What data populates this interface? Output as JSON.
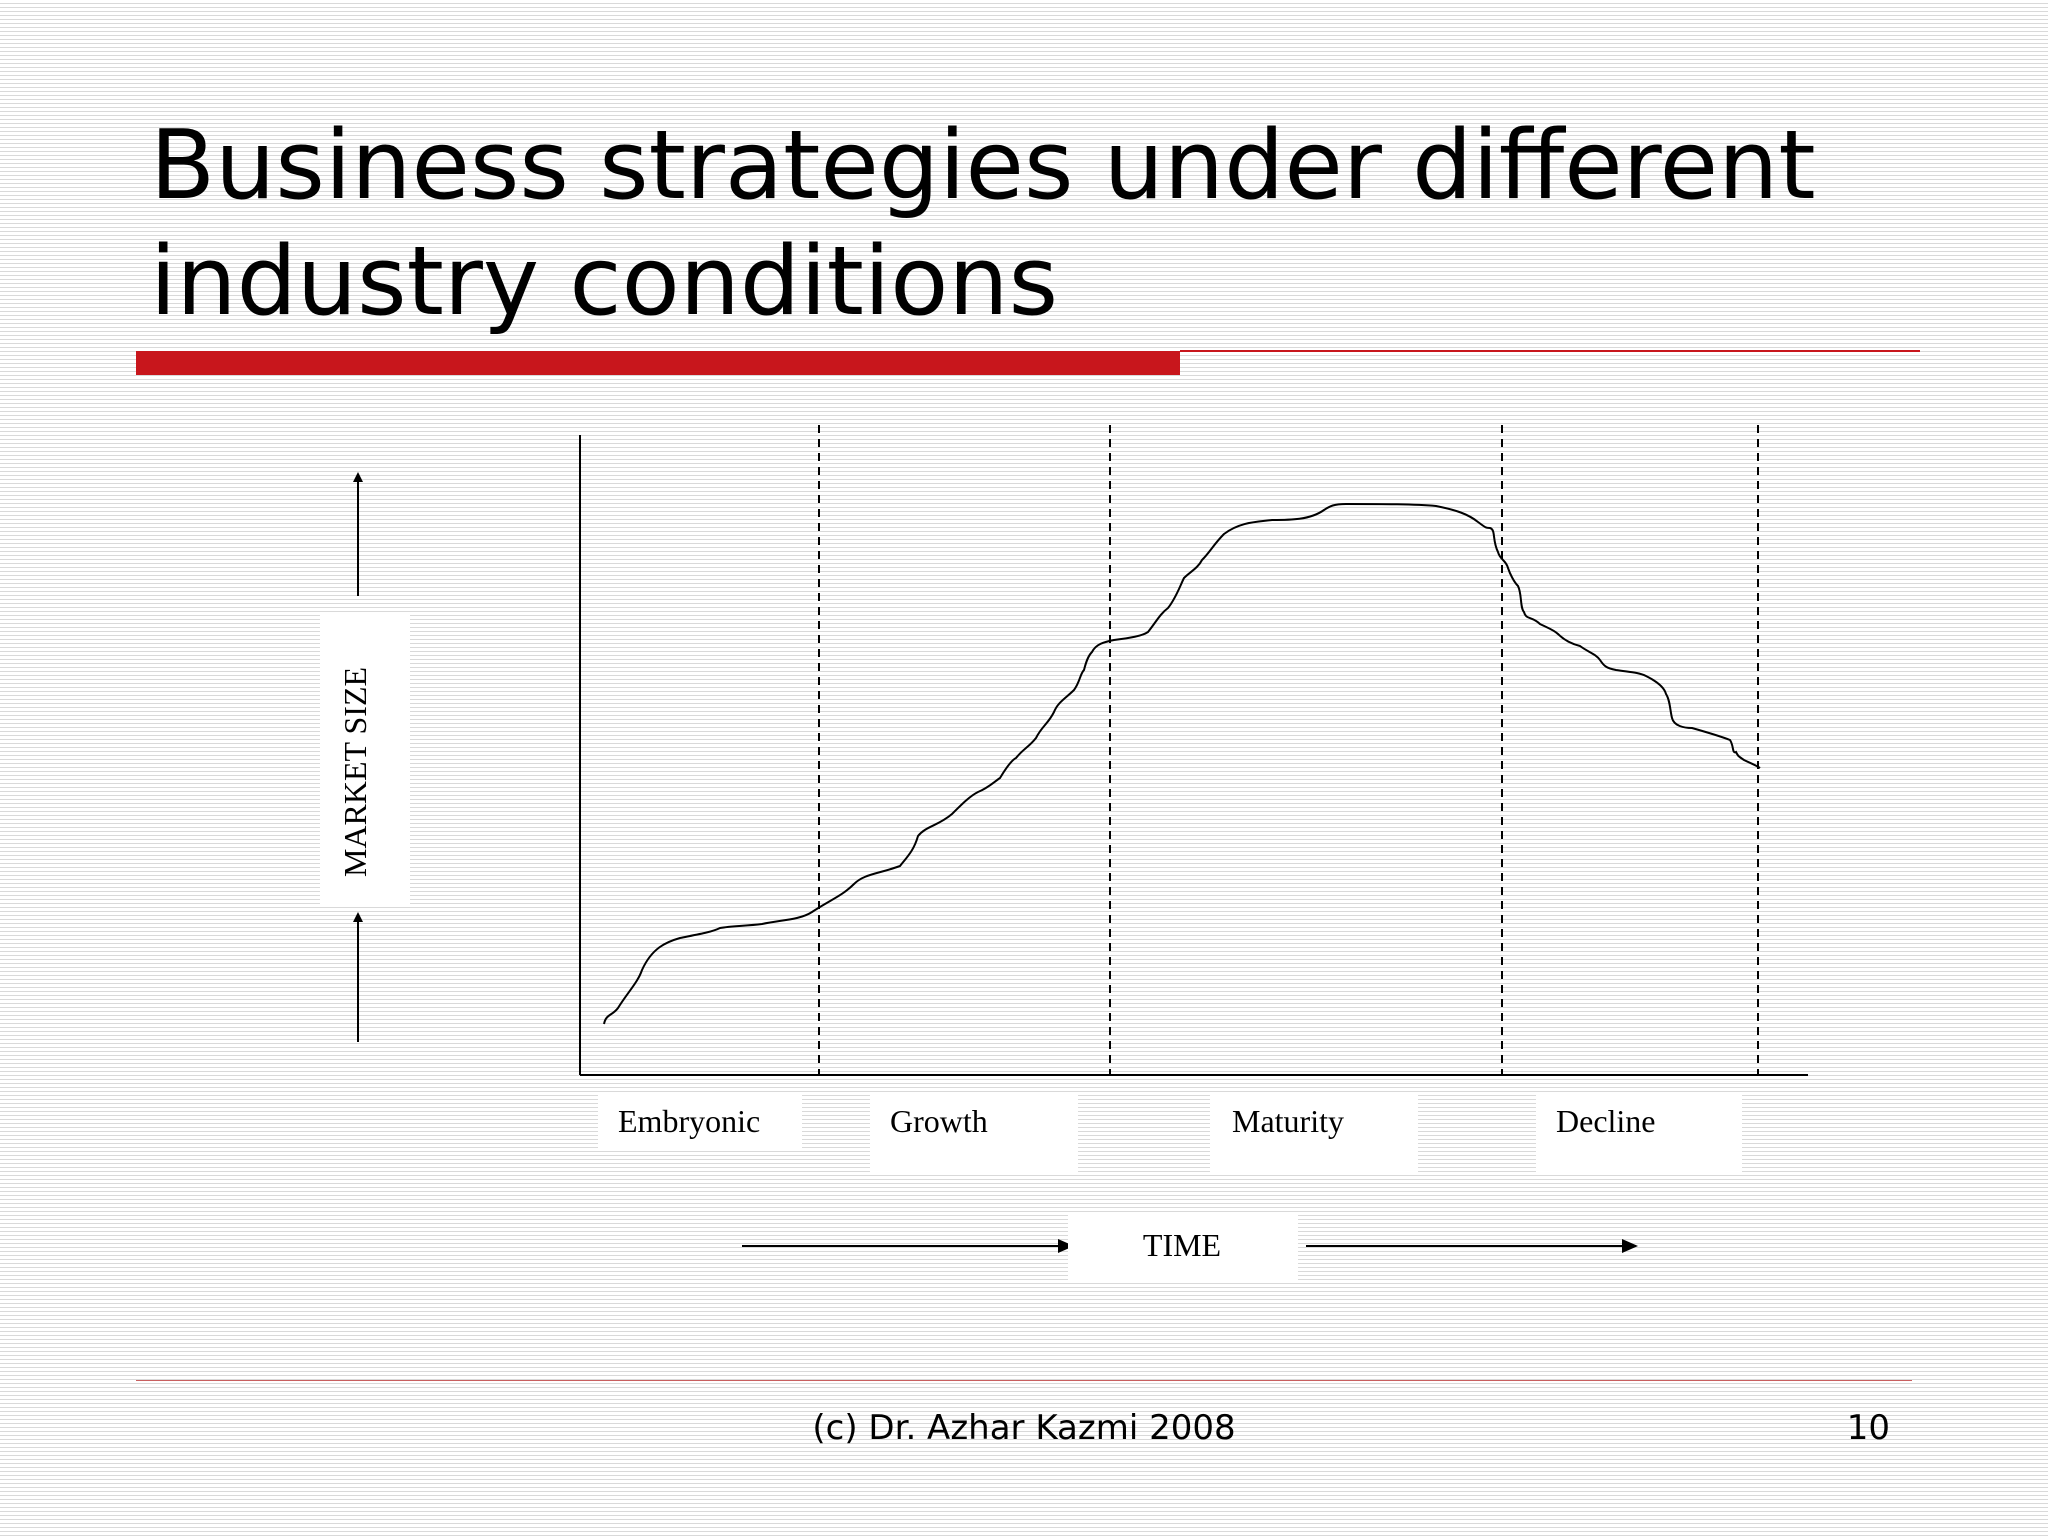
{
  "slide": {
    "title": "Business strategies under different industry conditions",
    "footer": "(c) Dr. Azhar Kazmi 2008",
    "page_number": "10",
    "accent_color": "#c8161c"
  },
  "diagram": {
    "y_axis_label": "MARKET SIZE",
    "x_axis_label": "TIME",
    "stages": [
      "Embryonic",
      "Growth",
      "Maturity",
      "Decline"
    ]
  }
}
